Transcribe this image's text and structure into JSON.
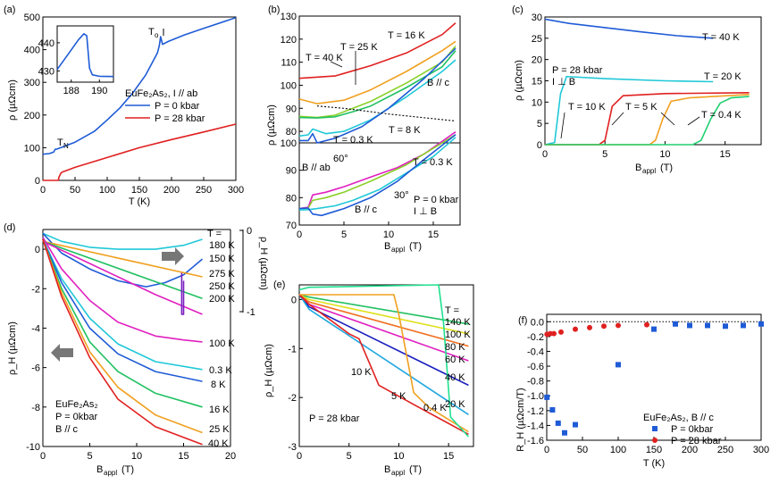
{
  "chart_data": [
    {
      "panel": "(a)",
      "type": "line",
      "xlabel": "T (K)",
      "ylabel": "ρ (µΩcm)",
      "xlim": [
        0,
        300
      ],
      "ylim": [
        0,
        500
      ],
      "xticks": [
        "0",
        "50",
        "100",
        "150",
        "200",
        "250",
        "300"
      ],
      "yticks": [
        "0",
        "100",
        "200",
        "300",
        "400",
        "500"
      ],
      "legend_title": "EuFe₂As₂, I // ab",
      "annotations": [
        "Tₙ",
        "T₀"
      ],
      "series": [
        {
          "name": "P = 0 kbar",
          "color": "#1f5bd6",
          "x": [
            0,
            10,
            17,
            19,
            22,
            30,
            50,
            80,
            100,
            120,
            140,
            160,
            170,
            178,
            181,
            183,
            186,
            195,
            220,
            250,
            300
          ],
          "y": [
            80,
            82,
            87,
            95,
            96,
            102,
            117,
            150,
            185,
            222,
            268,
            323,
            360,
            390,
            412,
            440,
            416,
            425,
            445,
            465,
            498
          ]
        },
        {
          "name": "P = 28 kbar",
          "color": "#e02020",
          "x": [
            0,
            24,
            25,
            28,
            30,
            50,
            100,
            150,
            200,
            250,
            300
          ],
          "y": [
            0,
            0,
            10,
            22,
            25,
            40,
            70,
            100,
            125,
            148,
            172
          ]
        }
      ],
      "inset": {
        "xlim": [
          187,
          191
        ],
        "ylim": [
          426,
          446
        ],
        "xticks": [
          "188",
          "190"
        ],
        "yticks": [
          "430",
          "440"
        ],
        "x": [
          187,
          187.5,
          188,
          188.5,
          188.9,
          189.1,
          189.2,
          189.3,
          189.5,
          190,
          191
        ],
        "y": [
          430.5,
          434,
          437.5,
          441,
          443.2,
          442.5,
          437,
          431,
          428.6,
          428.1,
          428
        ]
      }
    },
    {
      "panel": "(b)",
      "type": "line",
      "xlabel": "B_appl (T)",
      "ylabel": "ρ (µΩcm)",
      "xlim": [
        0,
        18
      ],
      "xticks": [
        "0",
        "5",
        "10",
        "15"
      ],
      "top_yticks": [
        "80",
        "90",
        "100",
        "110",
        "120",
        "130"
      ],
      "bottom_yticks": [
        "70",
        "80",
        "90",
        "100"
      ],
      "top_labels": [
        "T = 40 K",
        "T = 25 K",
        "T = 16 K",
        "B // c",
        "T = 8 K",
        "T = 0.3 K"
      ],
      "bottom_labels": [
        "B // ab",
        "60°",
        "30°",
        "B // c",
        "T = 0.3 K",
        "P = 0 kbar",
        "I ⊥ B"
      ],
      "top_series": [
        {
          "name": "40 K",
          "color": "#e02020",
          "x": [
            0,
            4,
            8,
            12,
            16,
            17.5
          ],
          "y": [
            103,
            104,
            108.5,
            114,
            122,
            127
          ]
        },
        {
          "name": "25 K",
          "color": "#f0a020",
          "x": [
            0,
            2,
            5,
            8,
            12,
            16,
            17.5
          ],
          "y": [
            94,
            92,
            93.5,
            98,
            106,
            115,
            119
          ]
        },
        {
          "name": "16 K",
          "color": "#8ad02a",
          "x": [
            0,
            2,
            4,
            6,
            8,
            12,
            16,
            17.5
          ],
          "y": [
            86.5,
            86,
            87,
            90,
            93,
            101,
            110,
            117
          ]
        },
        {
          "name": "16 K (2)",
          "color": "#20c060",
          "x": [
            0,
            2,
            4,
            6,
            8,
            12,
            16,
            17.5
          ],
          "y": [
            86,
            85.8,
            86.3,
            88.5,
            91,
            99,
            108,
            115
          ]
        },
        {
          "name": "8 K",
          "color": "#20c8d8",
          "x": [
            0,
            1,
            1.5,
            3,
            5,
            8,
            12,
            16,
            17.5
          ],
          "y": [
            78,
            78.5,
            81,
            79,
            80,
            85,
            95,
            106,
            111
          ]
        },
        {
          "name": "0.3 K",
          "color": "#1f5bd6",
          "x": [
            0,
            1,
            1.5,
            2,
            4,
            7,
            10,
            14,
            17.5
          ],
          "y": [
            76,
            76,
            79,
            75,
            77,
            82,
            90,
            103,
            116
          ]
        },
        {
          "name": "boundary",
          "color": "#000000",
          "dashed": true,
          "x": [
            2,
            5,
            10,
            15,
            17.5
          ],
          "y": [
            91,
            90,
            87.5,
            85.5,
            84.5
          ]
        }
      ],
      "bottom_series": [
        {
          "name": "B // ab",
          "color": "#e020c0",
          "x": [
            0,
            1,
            1.5,
            3,
            5,
            8,
            11,
            14,
            17.5
          ],
          "y": [
            76,
            76.5,
            81,
            82,
            84,
            87.5,
            91,
            96,
            104
          ]
        },
        {
          "name": "60°",
          "color": "#8ad02a",
          "x": [
            0,
            1,
            1.5,
            3,
            5,
            8,
            12,
            15,
            17.5
          ],
          "y": [
            76,
            76.2,
            79,
            80,
            82,
            86,
            92,
            98,
            103
          ]
        },
        {
          "name": "30°",
          "color": "#20c8d8",
          "x": [
            0,
            1,
            2,
            4,
            6,
            9,
            12,
            15,
            17.5
          ],
          "y": [
            75.5,
            75.6,
            76,
            77,
            79,
            83,
            89,
            95,
            102
          ]
        },
        {
          "name": "B // c",
          "color": "#1f5bd6",
          "x": [
            0,
            1,
            1.5,
            2.5,
            5,
            8,
            11,
            14,
            17.5
          ],
          "y": [
            76,
            76.2,
            74,
            73.5,
            76,
            80,
            86,
            94,
            103
          ]
        }
      ]
    },
    {
      "panel": "(c)",
      "type": "line",
      "xlabel": "B_appl (T)",
      "ylabel": "ρ (µΩcm)",
      "xlim": [
        0,
        18
      ],
      "ylim": [
        0,
        30
      ],
      "xticks": [
        "0",
        "5",
        "10",
        "15"
      ],
      "yticks": [
        "0",
        "5",
        "10",
        "15",
        "20",
        "25",
        "30"
      ],
      "annotations": [
        "P = 28 kbar",
        "I ⊥ B",
        "T = 40 K",
        "T = 20 K",
        "T = 10 K",
        "T = 5 K",
        "T = 0.4 K"
      ],
      "series": [
        {
          "name": "T = 40 K",
          "color": "#1f5bd6",
          "x": [
            0,
            2,
            5,
            8,
            11,
            14
          ],
          "y": [
            29.5,
            28.5,
            27.5,
            26.5,
            25.6,
            25
          ]
        },
        {
          "name": "T = 20 K",
          "color": "#20c8d8",
          "x": [
            0,
            0.8,
            1.3,
            1.8,
            5,
            10,
            14
          ],
          "y": [
            0,
            0.5,
            12,
            16,
            15.5,
            15,
            14.8
          ]
        },
        {
          "name": "T = 10 K",
          "color": "#e02020",
          "x": [
            0,
            4.5,
            5,
            5.6,
            6.5,
            10,
            17
          ],
          "y": [
            0,
            0,
            1,
            9,
            11.5,
            12,
            12.2
          ]
        },
        {
          "name": "T = 5 K",
          "color": "#f0a020",
          "x": [
            0,
            8.7,
            9.2,
            9.8,
            10.5,
            12,
            17
          ],
          "y": [
            0,
            0,
            1,
            6,
            10.2,
            11,
            11.8
          ]
        },
        {
          "name": "T = 0.4 K",
          "color": "#20d070",
          "x": [
            0,
            12.3,
            13,
            13.8,
            14.6,
            15.5,
            17
          ],
          "y": [
            0,
            0,
            1,
            6,
            9.8,
            11,
            11.3
          ]
        }
      ]
    },
    {
      "panel": "(d)",
      "type": "line",
      "xlabel": "B_appl (T)",
      "ylabel": "ρ_H (µΩcm)",
      "right_ylabel": "ρ_H (µΩcm)",
      "xlim": [
        0,
        20
      ],
      "ylim": [
        -10,
        1
      ],
      "xticks": [
        "0",
        "5",
        "10",
        "15",
        "20"
      ],
      "yticks": [
        "0",
        "-2",
        "-4",
        "-6",
        "-8",
        "-10"
      ],
      "right_yticks": [
        "0",
        "-1"
      ],
      "text_labels": [
        "T =",
        "180 K",
        "150 K",
        "100 K",
        "0.3 K",
        "8 K",
        "16 K",
        "25 K",
        "40 K",
        "EuFe₂As₂",
        "P = 0kbar",
        "B // c"
      ],
      "right_axis_labels": [
        "275 K",
        "250 K",
        "200 K"
      ],
      "series": [
        {
          "name": "180 K",
          "color": "#20c8d8",
          "x": [
            0,
            2,
            5,
            8,
            12,
            15,
            17
          ],
          "y": [
            0.8,
            0.4,
            0.1,
            0.0,
            0.0,
            0.2,
            0.5
          ]
        },
        {
          "name": "150 K",
          "color": "#1f5bd6",
          "x": [
            0,
            2,
            5,
            8,
            11,
            13,
            15,
            17
          ],
          "y": [
            0.8,
            -0.2,
            -1.0,
            -1.6,
            -1.9,
            -1.7,
            -1.3,
            -0.5
          ]
        },
        {
          "name": "275 K",
          "color": "#f0a020",
          "x": [
            0,
            17
          ],
          "y": [
            0.4,
            -1.4
          ]
        },
        {
          "name": "250 K",
          "color": "#20c060",
          "x": [
            0,
            17
          ],
          "y": [
            0.4,
            -2.5
          ]
        },
        {
          "name": "200 K",
          "color": "#e020c0",
          "x": [
            0,
            4,
            8,
            12,
            17
          ],
          "y": [
            0.4,
            -0.5,
            -1.4,
            -2.3,
            -3.3
          ]
        },
        {
          "name": "100 K",
          "color": "#e020c0",
          "x": [
            0,
            2,
            5,
            8,
            12,
            15,
            17
          ],
          "y": [
            0.6,
            -1.0,
            -2.6,
            -3.7,
            -4.4,
            -4.6,
            -4.7
          ]
        },
        {
          "name": "0.3 K",
          "color": "#20c8d8",
          "x": [
            0,
            2,
            5,
            8,
            12,
            17
          ],
          "y": [
            0.5,
            -1.5,
            -3.5,
            -4.8,
            -5.7,
            -6.1
          ]
        },
        {
          "name": "8 K",
          "color": "#1f5bd6",
          "x": [
            0,
            2,
            5,
            8,
            12,
            17
          ],
          "y": [
            0.5,
            -1.7,
            -4.0,
            -5.3,
            -6.2,
            -6.7
          ]
        },
        {
          "name": "16 K",
          "color": "#20c060",
          "x": [
            0,
            2,
            5,
            8,
            12,
            17
          ],
          "y": [
            0.5,
            -2.0,
            -4.7,
            -6.2,
            -7.3,
            -8.0
          ]
        },
        {
          "name": "25 K",
          "color": "#f0a020",
          "x": [
            0,
            2,
            5,
            8,
            12,
            17
          ],
          "y": [
            0.5,
            -2.2,
            -5.2,
            -7.0,
            -8.4,
            -9.3
          ]
        },
        {
          "name": "40 K",
          "color": "#e02020",
          "x": [
            0,
            2,
            5,
            8,
            12,
            17
          ],
          "y": [
            0.5,
            -2.4,
            -5.5,
            -7.6,
            -9.0,
            -9.9
          ]
        },
        {
          "name": "150 K (spike)",
          "color": "#7a20c0",
          "x": [
            14.8,
            14.8,
            15,
            15
          ],
          "y": [
            -1.2,
            -3.3,
            -3.3,
            -1.6
          ]
        }
      ]
    },
    {
      "panel": "(e)",
      "type": "line",
      "xlabel": "B_appl (T)",
      "ylabel": "ρ_H (µΩcm)",
      "xlim": [
        0,
        17.5
      ],
      "ylim": [
        -3,
        0.3
      ],
      "xticks": [
        "0",
        "5",
        "10",
        "15"
      ],
      "yticks": [
        "0",
        "-1",
        "-2",
        "-3"
      ],
      "text_labels": [
        "T =",
        "140 K",
        "100 K",
        "80 K",
        "60 K",
        "40 K",
        "20 K",
        "0.4 K",
        "10 K",
        "5 K",
        "P = 28 kbar"
      ],
      "series": [
        {
          "name": "140 K",
          "color": "#20c060",
          "x": [
            0,
            1,
            17
          ],
          "y": [
            0.1,
            0.05,
            -0.5
          ]
        },
        {
          "name": "100 K",
          "color": "#e0e020",
          "x": [
            0,
            1,
            17
          ],
          "y": [
            0.1,
            0.0,
            -0.7
          ]
        },
        {
          "name": "80 K",
          "color": "#f07020",
          "x": [
            0,
            1,
            17
          ],
          "y": [
            0.1,
            -0.05,
            -0.95
          ]
        },
        {
          "name": "60 K",
          "color": "#e020c0",
          "x": [
            0,
            1,
            17
          ],
          "y": [
            0.1,
            -0.1,
            -1.25
          ]
        },
        {
          "name": "40 K",
          "color": "#1a20c0",
          "x": [
            0,
            1,
            17
          ],
          "y": [
            0.1,
            -0.15,
            -1.75
          ]
        },
        {
          "name": "20 K",
          "color": "#20a8e0",
          "x": [
            0,
            1,
            17
          ],
          "y": [
            0.1,
            -0.2,
            -2.35
          ]
        },
        {
          "name": "10 K",
          "color": "#e02020",
          "x": [
            0,
            1,
            5,
            6,
            8,
            12,
            17
          ],
          "y": [
            0.1,
            -0.1,
            -0.7,
            -0.8,
            -1.75,
            -2.2,
            -2.75
          ]
        },
        {
          "name": "5 K",
          "color": "#f0a020",
          "x": [
            0,
            1,
            9.5,
            10,
            11.5,
            13,
            17
          ],
          "y": [
            0.1,
            0.1,
            0.1,
            -0.3,
            -1.9,
            -2.2,
            -2.7
          ]
        },
        {
          "name": "0.4 K",
          "color": "#20e090",
          "x": [
            0,
            1,
            14,
            14.5,
            15.2,
            17
          ],
          "y": [
            0.2,
            0.25,
            0.3,
            -0.5,
            -2.4,
            -2.8
          ]
        }
      ]
    },
    {
      "panel": "(f)",
      "type": "scatter",
      "xlabel": "T (K)",
      "ylabel": "R_H (µΩcm/T)",
      "xlim": [
        0,
        300
      ],
      "ylim": [
        -1.6,
        0.1
      ],
      "xticks": [
        "0",
        "50",
        "100",
        "150",
        "200",
        "250",
        "300"
      ],
      "yticks": [
        "0.0",
        "-0.2",
        "-0.4",
        "-0.6",
        "-0.8",
        "-1.0",
        "-1.2",
        "-1.4",
        "-1.6"
      ],
      "legend_title": "EuFe₂As₂, B // c",
      "series": [
        {
          "name": "P = 0kbar",
          "color": "#1f5bd6",
          "marker": "square",
          "x": [
            0.3,
            8,
            16,
            25,
            40,
            100,
            150,
            180,
            200,
            225,
            250,
            275,
            300
          ],
          "y": [
            -1.02,
            -1.19,
            -1.37,
            -1.5,
            -1.39,
            -0.58,
            -0.1,
            -0.03,
            -0.05,
            -0.05,
            -0.06,
            -0.05,
            -0.03
          ]
        },
        {
          "name": "P = 28 kbar",
          "color": "#e02020",
          "marker": "circle",
          "x": [
            0.4,
            5,
            10,
            20,
            40,
            60,
            80,
            100,
            140
          ],
          "y": [
            -0.17,
            -0.16,
            -0.16,
            -0.14,
            -0.1,
            -0.08,
            -0.06,
            -0.05,
            -0.04
          ]
        }
      ]
    }
  ]
}
